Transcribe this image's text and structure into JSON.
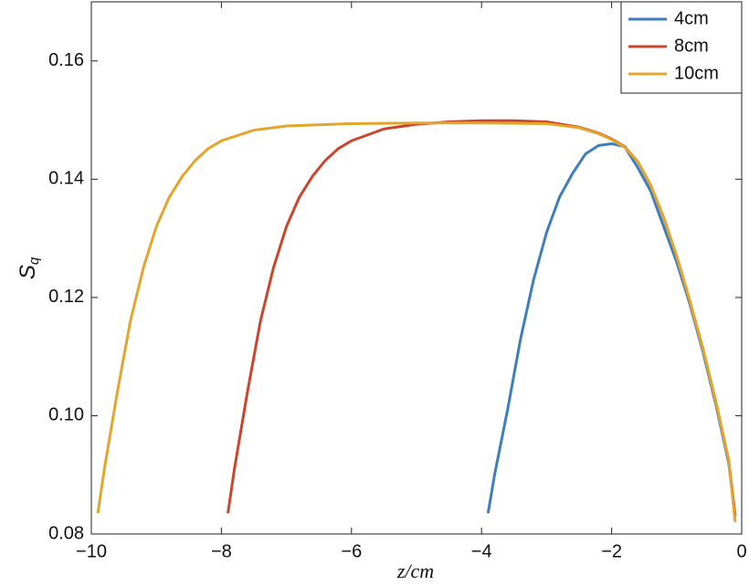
{
  "chart_data": {
    "type": "line",
    "xlabel": "z/cm",
    "ylabel": "S",
    "ylabel_subscript": "q",
    "xlim": [
      -10,
      0
    ],
    "ylim": [
      0.08,
      0.17
    ],
    "xticks": [
      {
        "value": -10,
        "label": "−10"
      },
      {
        "value": -8,
        "label": "−8"
      },
      {
        "value": -6,
        "label": "−6"
      },
      {
        "value": -4,
        "label": "−4"
      },
      {
        "value": -2,
        "label": "−2"
      },
      0
    ],
    "yticks": [
      0.08,
      {
        "value": 0.1,
        "label": "0.10"
      },
      0.12,
      0.14,
      0.16
    ],
    "legend": "top-right",
    "series": [
      {
        "name": "4cm",
        "color": "#3d7ebf",
        "x": [
          -3.9,
          -3.8,
          -3.6,
          -3.4,
          -3.2,
          -3.0,
          -2.8,
          -2.6,
          -2.4,
          -2.2,
          -2.0,
          -1.8,
          -1.6,
          -1.4,
          -1.2,
          -1.0,
          -0.8,
          -0.6,
          -0.4,
          -0.2,
          -0.1
        ],
        "values": [
          0.0835,
          0.09,
          0.101,
          0.113,
          0.123,
          0.131,
          0.137,
          0.141,
          0.1443,
          0.1457,
          0.146,
          0.1455,
          0.142,
          0.138,
          0.132,
          0.126,
          0.119,
          0.111,
          0.102,
          0.092,
          0.083
        ]
      },
      {
        "name": "8cm",
        "color": "#cb452d",
        "x": [
          -7.9,
          -7.8,
          -7.6,
          -7.4,
          -7.2,
          -7.0,
          -6.8,
          -6.6,
          -6.4,
          -6.2,
          -6.0,
          -5.5,
          -5.0,
          -4.5,
          -4.0,
          -3.5,
          -3.0,
          -2.5,
          -2.2,
          -2.0,
          -1.8,
          -1.6,
          -1.4,
          -1.2,
          -1.0,
          -0.8,
          -0.6,
          -0.4,
          -0.2,
          -0.1
        ],
        "values": [
          0.0835,
          0.091,
          0.104,
          0.116,
          0.125,
          0.132,
          0.137,
          0.1405,
          0.1432,
          0.1452,
          0.1465,
          0.1485,
          0.1493,
          0.1497,
          0.1499,
          0.1499,
          0.1497,
          0.1488,
          0.1478,
          0.1468,
          0.1455,
          0.143,
          0.139,
          0.1335,
          0.127,
          0.1195,
          0.1115,
          0.1025,
          0.0925,
          0.083
        ]
      },
      {
        "name": "10cm",
        "color": "#e3a52c",
        "x": [
          -9.9,
          -9.8,
          -9.6,
          -9.4,
          -9.2,
          -9.0,
          -8.8,
          -8.6,
          -8.4,
          -8.2,
          -8.0,
          -7.5,
          -7.0,
          -6.0,
          -5.0,
          -4.0,
          -3.0,
          -2.5,
          -2.2,
          -2.0,
          -1.8,
          -1.6,
          -1.4,
          -1.2,
          -1.0,
          -0.8,
          -0.6,
          -0.4,
          -0.2,
          -0.1
        ],
        "values": [
          0.0835,
          0.091,
          0.104,
          0.116,
          0.125,
          0.132,
          0.137,
          0.1405,
          0.1432,
          0.1452,
          0.1465,
          0.1483,
          0.149,
          0.1494,
          0.1495,
          0.1495,
          0.1494,
          0.1487,
          0.1477,
          0.1467,
          0.1454,
          0.143,
          0.139,
          0.1335,
          0.127,
          0.1195,
          0.1115,
          0.1025,
          0.0925,
          0.082
        ]
      }
    ]
  }
}
